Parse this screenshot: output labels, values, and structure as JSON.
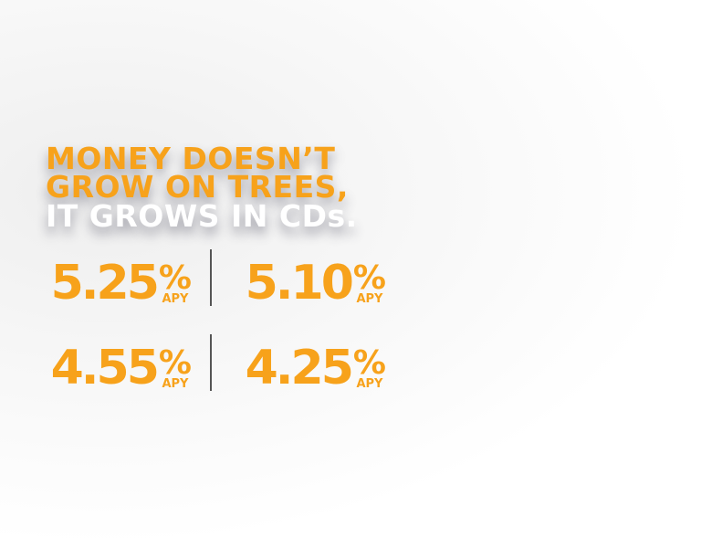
{
  "headline": {
    "lines": [
      "MONEY DOESN’T",
      "GROW ON TREES,",
      "IT GROWS IN CDs."
    ]
  },
  "rates": [
    "5.25",
    "5.10",
    "4.55",
    "4.25"
  ],
  "unit": "%",
  "unit_label": "APY"
}
